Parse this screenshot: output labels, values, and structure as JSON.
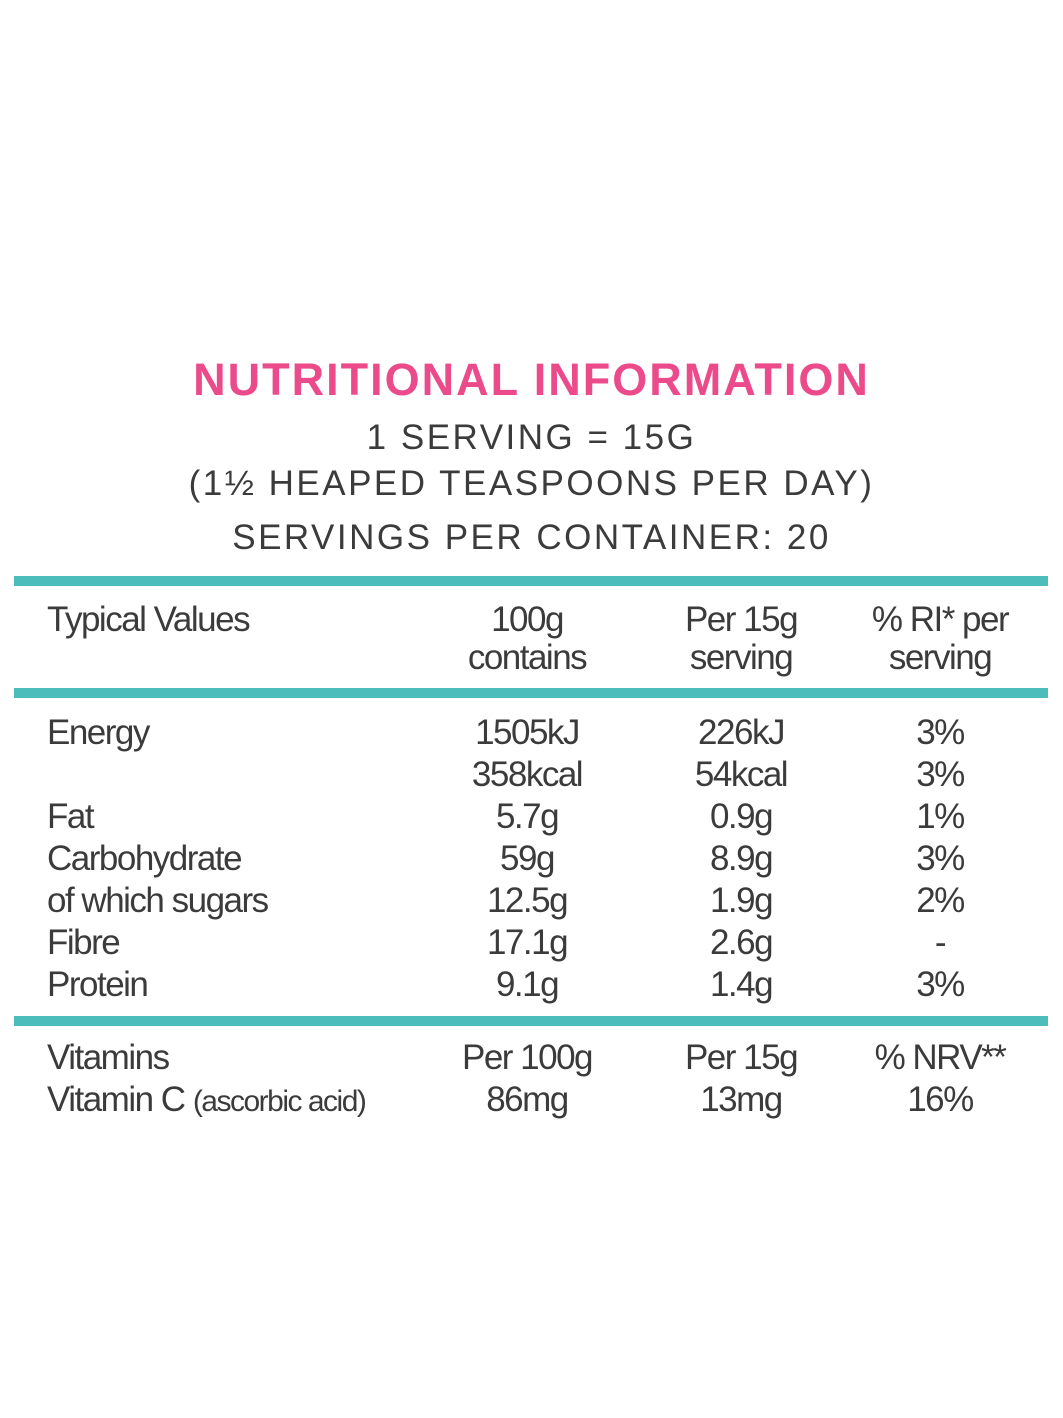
{
  "header": {
    "title": "NUTRITIONAL INFORMATION",
    "serving_size": "1 SERVING = 15G",
    "serving_note": "(1½ HEAPED TEASPOONS PER DAY)",
    "servings_per_container": "SERVINGS PER CONTAINER: 20"
  },
  "colors": {
    "title": "#ec4b8b",
    "divider": "#4dbdbb",
    "text": "#3b3b3b"
  },
  "table": {
    "headers": [
      [
        "Typical Values",
        ""
      ],
      [
        "100g",
        "contains"
      ],
      [
        "Per 15g",
        "serving"
      ],
      [
        "% RI* per",
        "serving"
      ]
    ],
    "rows": [
      [
        "Energy",
        "1505kJ",
        "226kJ",
        "3%"
      ],
      [
        "",
        "358kcal",
        "54kcal",
        "3%"
      ],
      [
        "Fat",
        "5.7g",
        "0.9g",
        "1%"
      ],
      [
        "Carbohydrate",
        "59g",
        "8.9g",
        "3%"
      ],
      [
        "of which sugars",
        "12.5g",
        "1.9g",
        "2%"
      ],
      [
        "Fibre",
        "17.1g",
        "2.6g",
        "-"
      ],
      [
        "Protein",
        "9.1g",
        "1.4g",
        "3%"
      ]
    ]
  },
  "vitamins": {
    "headers": [
      "Vitamins",
      "Per 100g",
      "Per 15g",
      "% NRV**"
    ],
    "rows": [
      {
        "name": "Vitamin C",
        "note": "(ascorbic acid)",
        "per100": "86mg",
        "per15": "13mg",
        "nrv": "16%"
      }
    ]
  }
}
